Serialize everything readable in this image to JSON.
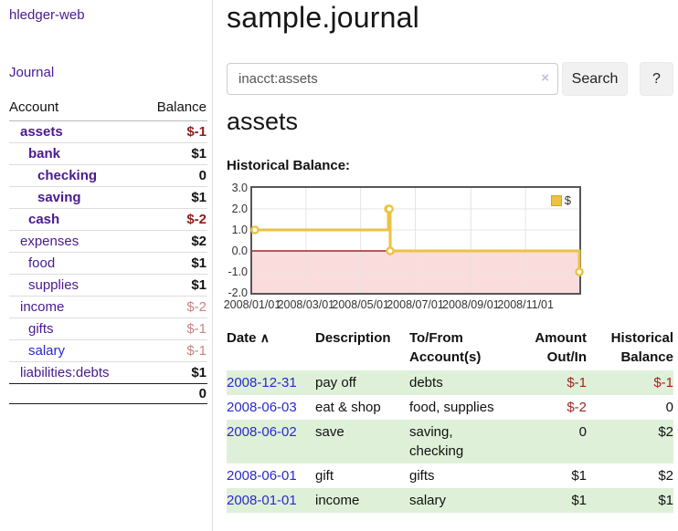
{
  "colors": {
    "accent_purple": "#4a1a8f",
    "link_blue": "#2a2ac9",
    "negative_dark": "#8e1c1c",
    "negative_light": "#c58585",
    "table_negative": "#a32424",
    "row_highlight_green": "#dff0d8",
    "chart_line_yellow": "#edc240",
    "chart_negative_fill": "#fbdcdc",
    "chart_zero_line": "#8b0000"
  },
  "sidebar": {
    "brand": "hledger-web",
    "journal_link": "Journal",
    "accounts": {
      "headers": {
        "account": "Account",
        "balance": "Balance"
      },
      "rows": [
        {
          "name": "assets",
          "depth": 1,
          "bold": true,
          "balance": "$-1",
          "neg": "dark"
        },
        {
          "name": "bank",
          "depth": 2,
          "bold": true,
          "balance": "$1",
          "neg": null
        },
        {
          "name": "checking",
          "depth": 3,
          "bold": true,
          "balance": "0",
          "neg": null
        },
        {
          "name": "saving",
          "depth": 3,
          "bold": true,
          "balance": "$1",
          "neg": null
        },
        {
          "name": "cash",
          "depth": 2,
          "bold": true,
          "balance": "$-2",
          "neg": "dark"
        },
        {
          "name": "expenses",
          "depth": 1,
          "bold": false,
          "balance": "$2",
          "neg": null
        },
        {
          "name": "food",
          "depth": 2,
          "bold": false,
          "balance": "$1",
          "neg": null
        },
        {
          "name": "supplies",
          "depth": 2,
          "bold": false,
          "balance": "$1",
          "neg": null
        },
        {
          "name": "income",
          "depth": 1,
          "bold": false,
          "balance": "$-2",
          "neg": "light"
        },
        {
          "name": "gifts",
          "depth": 2,
          "bold": false,
          "balance": "$-1",
          "neg": "light"
        },
        {
          "name": "salary",
          "depth": 2,
          "bold": false,
          "balance": "$-1",
          "neg": "light",
          "blue": true
        },
        {
          "name": "liabilities:debts",
          "depth": 1,
          "bold": false,
          "balance": "$1",
          "neg": null
        }
      ],
      "total": "0"
    }
  },
  "main": {
    "title": "sample.journal",
    "search": {
      "value": "inacct:assets",
      "clear_icon": "×",
      "button": "Search",
      "help_button": "?"
    },
    "account_heading": "assets",
    "chart_title": "Historical Balance:"
  },
  "chart_data": {
    "type": "line",
    "step": true,
    "title": "Historical Balance:",
    "x_range": [
      "2008-01-01",
      "2008-12-31"
    ],
    "ylim": [
      -2,
      3
    ],
    "yticks": [
      "3.0",
      "2.0",
      "1.0",
      "0.0",
      "-1.0",
      "-2.0"
    ],
    "ytick_values": [
      3,
      2,
      1,
      0,
      -1,
      -2
    ],
    "xticks": [
      "2008/01/01",
      "2008/03/01",
      "2008/05/01",
      "2008/07/01",
      "2008/09/01",
      "2008/11/01"
    ],
    "xtick_dates": [
      "2008-01-01",
      "2008-03-01",
      "2008-05-01",
      "2008-07-01",
      "2008-09-01",
      "2008-11-01"
    ],
    "grid": true,
    "legend": {
      "label": "$",
      "position": "top-right"
    },
    "series": [
      {
        "name": "$",
        "color": "#edc240",
        "points": [
          {
            "date": "2008-01-01",
            "value": 1
          },
          {
            "date": "2008-06-01",
            "value": 2
          },
          {
            "date": "2008-06-02",
            "value": 2
          },
          {
            "date": "2008-06-03",
            "value": 0
          },
          {
            "date": "2008-12-31",
            "value": -1
          }
        ]
      }
    ],
    "negative_region_shaded": true
  },
  "register": {
    "headers": [
      {
        "line1": "Date",
        "line2": "",
        "sort_icon": "∧"
      },
      {
        "line1": "Description",
        "line2": ""
      },
      {
        "line1": "To/From",
        "line2": "Account(s)"
      },
      {
        "line1": "Amount",
        "line2": "Out/In"
      },
      {
        "line1": "Historical",
        "line2": "Balance"
      }
    ],
    "rows": [
      {
        "date": "2008-12-31",
        "description": "pay off",
        "accounts": "debts",
        "amount": "$-1",
        "amount_neg": true,
        "balance": "$-1",
        "balance_neg": true,
        "highlight": true
      },
      {
        "date": "2008-06-03",
        "description": "eat & shop",
        "accounts": "food, supplies",
        "amount": "$-2",
        "amount_neg": true,
        "balance": "0",
        "balance_neg": false,
        "highlight": false
      },
      {
        "date": "2008-06-02",
        "description": "save",
        "accounts": "saving, checking",
        "amount": "0",
        "amount_neg": false,
        "balance": "$2",
        "balance_neg": false,
        "highlight": true
      },
      {
        "date": "2008-06-01",
        "description": "gift",
        "accounts": "gifts",
        "amount": "$1",
        "amount_neg": false,
        "balance": "$2",
        "balance_neg": false,
        "highlight": false
      },
      {
        "date": "2008-01-01",
        "description": "income",
        "accounts": "salary",
        "amount": "$1",
        "amount_neg": false,
        "balance": "$1",
        "balance_neg": false,
        "highlight": true
      }
    ]
  }
}
